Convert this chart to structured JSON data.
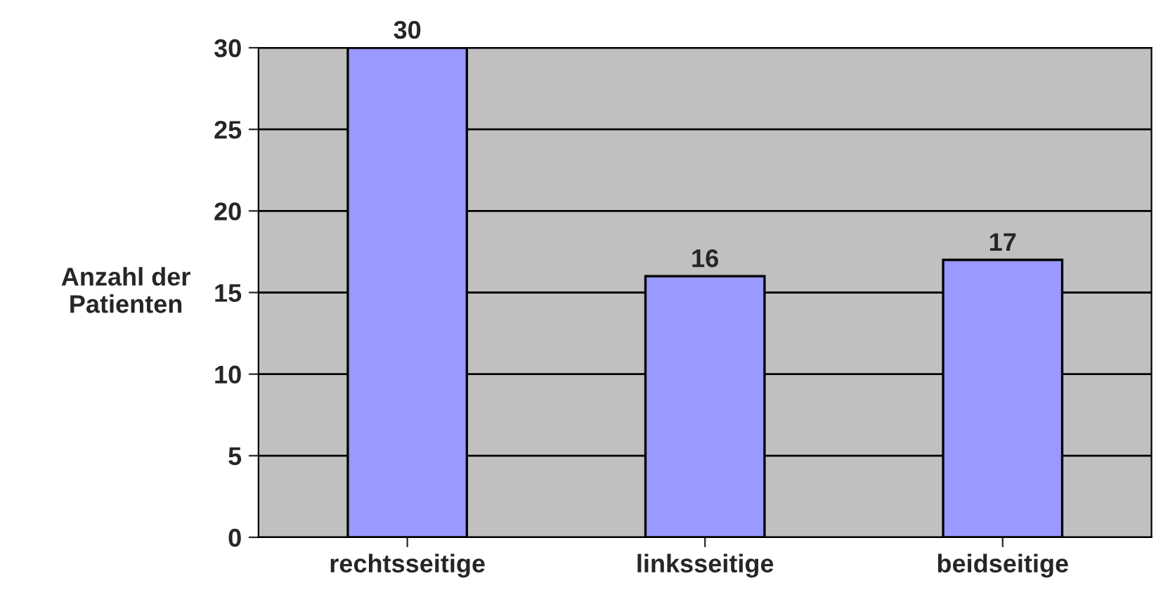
{
  "chart_data": {
    "type": "bar",
    "ylabel": "Anzahl der\nPatienten",
    "categories": [
      "rechtsseitige",
      "linksseitige",
      "beidseitige"
    ],
    "values": [
      30,
      16,
      17
    ],
    "color": "#9999ff",
    "ylim": [
      0,
      30
    ],
    "yticks": [
      0,
      5,
      10,
      15,
      20,
      25,
      30
    ],
    "grid": "y",
    "data_labels": true
  }
}
